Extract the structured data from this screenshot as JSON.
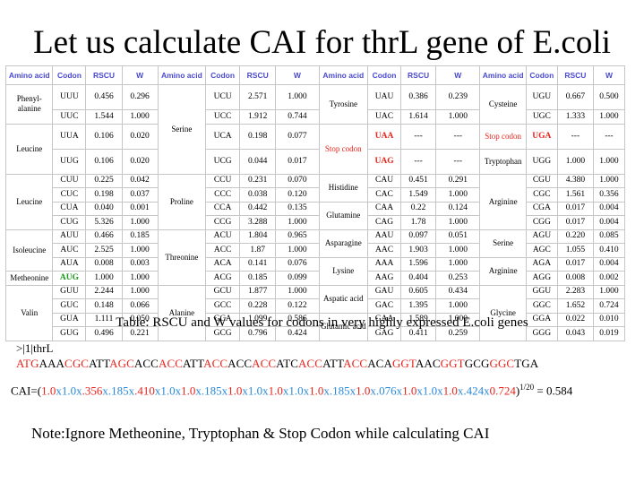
{
  "title": "Let us calculate CAI for thrL gene of E.coli",
  "headers": [
    "Amino acid",
    "Codon",
    "RSCU",
    "W"
  ],
  "caption": "Table: RSCU and W values for codons in very highly expressed E.coli genes",
  "seq_header": ">|1|thrL",
  "seq_parts": [
    "ATG",
    "AAA",
    "CGC",
    "ATT",
    "AGC",
    "ACC",
    "ACC",
    "ATT",
    "ACC",
    "ACC",
    "ACC",
    "ATC",
    "ACC",
    "ATT",
    "ACC",
    "ACA",
    "GGT",
    "AAC",
    "GGT",
    "GCG",
    "GGC",
    "TGA"
  ],
  "cai_prefix": "CAI=(",
  "cai_parts": [
    "1.0",
    "x",
    "1.0",
    "x",
    ".356",
    "x",
    ".185",
    "x",
    ".410",
    "x",
    "1.0",
    "x",
    "1.0",
    "x",
    ".185",
    "x",
    "1.0",
    "x",
    "1.0",
    "x",
    "1.0",
    "x",
    "1.0",
    "x",
    "1.0",
    "x",
    ".185",
    "x",
    "1.0",
    "x",
    ".076",
    "x",
    "1.0",
    "x",
    "1.0",
    "x",
    "1.0",
    "x",
    ".424",
    "x",
    "0.724"
  ],
  "cai_close": ")",
  "cai_exp": "1/20",
  "cai_result": "= 0.584",
  "note": "Note:Ignore Metheonine, Tryptophan & Stop Codon while calculating CAI",
  "colors": {
    "red": "#e8241c",
    "blue": "#2a8ad8",
    "green": "#1a9a1a",
    "header": "#4a4ad0"
  },
  "rows": [
    {
      "cls": "tall",
      "c": [
        {
          "t": "Phenyl-\nalanine",
          "rs": 2,
          "aa": 1
        },
        {
          "t": "UUU"
        },
        {
          "t": "0.456"
        },
        {
          "t": "0.296"
        },
        {
          "t": "Serine",
          "rs": 4,
          "aa": 1
        },
        {
          "t": "UCU"
        },
        {
          "t": "2.571"
        },
        {
          "t": "1.000"
        },
        {
          "t": "Tyrosine",
          "rs": 2,
          "aa": 1
        },
        {
          "t": "UAU"
        },
        {
          "t": "0.386"
        },
        {
          "t": "0.239"
        },
        {
          "t": "Cysteine",
          "rs": 2,
          "aa": 1
        },
        {
          "t": "UGU"
        },
        {
          "t": "0.667"
        },
        {
          "t": "0.500"
        }
      ]
    },
    {
      "c": [
        {
          "t": "UUC"
        },
        {
          "t": "1.544"
        },
        {
          "t": "1.000"
        },
        {
          "t": "UCC"
        },
        {
          "t": "1.912"
        },
        {
          "t": "0.744"
        },
        {
          "t": "UAC"
        },
        {
          "t": "1.614"
        },
        {
          "t": "1.000"
        },
        {
          "t": "UGC"
        },
        {
          "t": "1.333"
        },
        {
          "t": "1.000"
        }
      ]
    },
    {
      "cls": "tall",
      "c": [
        {
          "t": "Leucine",
          "rs": 2,
          "aa": 1
        },
        {
          "t": "UUA"
        },
        {
          "t": "0.106"
        },
        {
          "t": "0.020"
        },
        {
          "t": "UCA"
        },
        {
          "t": "0.198"
        },
        {
          "t": "0.077"
        },
        {
          "t": "Stop codon",
          "rs": 2,
          "aa": 1,
          "k": "red"
        },
        {
          "t": "UAA",
          "k": "red bold"
        },
        {
          "t": "---"
        },
        {
          "t": "---"
        },
        {
          "t": "Stop codon",
          "aa": 1,
          "k": "red"
        },
        {
          "t": "UGA",
          "k": "red bold"
        },
        {
          "t": "---"
        },
        {
          "t": "---"
        }
      ]
    },
    {
      "cls": "tall",
      "c": [
        {
          "t": "UUG"
        },
        {
          "t": "0.106"
        },
        {
          "t": "0.020"
        },
        {
          "t": "UCG"
        },
        {
          "t": "0.044"
        },
        {
          "t": "0.017"
        },
        {
          "t": "UAG",
          "k": "red bold"
        },
        {
          "t": "---"
        },
        {
          "t": "---"
        },
        {
          "t": "Tryptophan",
          "aa": 1
        },
        {
          "t": "UGG"
        },
        {
          "t": "1.000"
        },
        {
          "t": "1.000"
        }
      ]
    },
    {
      "c": [
        {
          "t": "Leucine",
          "rs": 4,
          "aa": 1
        },
        {
          "t": "CUU"
        },
        {
          "t": "0.225"
        },
        {
          "t": "0.042"
        },
        {
          "t": "Proline",
          "rs": 4,
          "aa": 1
        },
        {
          "t": "CCU"
        },
        {
          "t": "0.231"
        },
        {
          "t": "0.070"
        },
        {
          "t": "Histidine",
          "rs": 2,
          "aa": 1
        },
        {
          "t": "CAU"
        },
        {
          "t": "0.451"
        },
        {
          "t": "0.291"
        },
        {
          "t": "Arginine",
          "rs": 4,
          "aa": 1
        },
        {
          "t": "CGU"
        },
        {
          "t": "4.380"
        },
        {
          "t": "1.000"
        }
      ]
    },
    {
      "c": [
        {
          "t": "CUC"
        },
        {
          "t": "0.198"
        },
        {
          "t": "0.037"
        },
        {
          "t": "CCC"
        },
        {
          "t": "0.038"
        },
        {
          "t": "0.120"
        },
        {
          "t": "CAC"
        },
        {
          "t": "1.549"
        },
        {
          "t": "1.000"
        },
        {
          "t": "CGC"
        },
        {
          "t": "1.561"
        },
        {
          "t": "0.356"
        }
      ]
    },
    {
      "c": [
        {
          "t": "CUA"
        },
        {
          "t": "0.040"
        },
        {
          "t": "0.001"
        },
        {
          "t": "CCA"
        },
        {
          "t": "0.442"
        },
        {
          "t": "0.135"
        },
        {
          "t": "Glutamine",
          "rs": 2,
          "aa": 1
        },
        {
          "t": "CAA"
        },
        {
          "t": "0.22"
        },
        {
          "t": "0.124"
        },
        {
          "t": "CGA"
        },
        {
          "t": "0.017"
        },
        {
          "t": "0.004"
        }
      ]
    },
    {
      "c": [
        {
          "t": "CUG"
        },
        {
          "t": "5.326"
        },
        {
          "t": "1.000"
        },
        {
          "t": "CCG"
        },
        {
          "t": "3.288"
        },
        {
          "t": "1.000"
        },
        {
          "t": "CAG"
        },
        {
          "t": "1.78"
        },
        {
          "t": "1.000"
        },
        {
          "t": "CGG"
        },
        {
          "t": "0.017"
        },
        {
          "t": "0.004"
        }
      ]
    },
    {
      "c": [
        {
          "t": "Isoleucine",
          "rs": 3,
          "aa": 1
        },
        {
          "t": "AUU"
        },
        {
          "t": "0.466"
        },
        {
          "t": "0.185"
        },
        {
          "t": "Threonine",
          "rs": 4,
          "aa": 1
        },
        {
          "t": "ACU"
        },
        {
          "t": "1.804"
        },
        {
          "t": "0.965"
        },
        {
          "t": "Asparagine",
          "rs": 2,
          "aa": 1
        },
        {
          "t": "AAU"
        },
        {
          "t": "0.097"
        },
        {
          "t": "0.051"
        },
        {
          "t": "Serine",
          "rs": 2,
          "aa": 1
        },
        {
          "t": "AGU"
        },
        {
          "t": "0.220"
        },
        {
          "t": "0.085"
        }
      ]
    },
    {
      "c": [
        {
          "t": "AUC"
        },
        {
          "t": "2.525"
        },
        {
          "t": "1.000"
        },
        {
          "t": "ACC"
        },
        {
          "t": "1.87"
        },
        {
          "t": "1.000"
        },
        {
          "t": "AAC"
        },
        {
          "t": "1.903"
        },
        {
          "t": "1.000"
        },
        {
          "t": "AGC"
        },
        {
          "t": "1.055"
        },
        {
          "t": "0.410"
        }
      ]
    },
    {
      "c": [
        {
          "t": "AUA"
        },
        {
          "t": "0.008"
        },
        {
          "t": "0.003"
        },
        {
          "t": "ACA"
        },
        {
          "t": "0.141"
        },
        {
          "t": "0.076"
        },
        {
          "t": "Lysine",
          "rs": 2,
          "aa": 1
        },
        {
          "t": "AAA"
        },
        {
          "t": "1.596"
        },
        {
          "t": "1.000"
        },
        {
          "t": "Arginine",
          "rs": 2,
          "aa": 1
        },
        {
          "t": "AGA"
        },
        {
          "t": "0.017"
        },
        {
          "t": "0.004"
        }
      ]
    },
    {
      "c": [
        {
          "t": "Metheonine",
          "aa": 1
        },
        {
          "t": "AUG",
          "k": "green bold"
        },
        {
          "t": "1.000"
        },
        {
          "t": "1.000"
        },
        {
          "t": "ACG"
        },
        {
          "t": "0.185"
        },
        {
          "t": "0.099"
        },
        {
          "t": "AAG"
        },
        {
          "t": "0.404"
        },
        {
          "t": "0.253"
        },
        {
          "t": "AGG"
        },
        {
          "t": "0.008"
        },
        {
          "t": "0.002"
        }
      ]
    },
    {
      "c": [
        {
          "t": "Valin",
          "rs": 4,
          "aa": 1
        },
        {
          "t": "GUU"
        },
        {
          "t": "2.244"
        },
        {
          "t": "1.000"
        },
        {
          "t": "Alanine",
          "rs": 4,
          "aa": 1
        },
        {
          "t": "GCU"
        },
        {
          "t": "1.877"
        },
        {
          "t": "1.000"
        },
        {
          "t": "Aspatic acid",
          "rs": 2,
          "aa": 1
        },
        {
          "t": "GAU"
        },
        {
          "t": "0.605"
        },
        {
          "t": "0.434"
        },
        {
          "t": "Glycine",
          "rs": 4,
          "aa": 1
        },
        {
          "t": "GGU"
        },
        {
          "t": "2.283"
        },
        {
          "t": "1.000"
        }
      ]
    },
    {
      "c": [
        {
          "t": "GUC"
        },
        {
          "t": "0.148"
        },
        {
          "t": "0.066"
        },
        {
          "t": "GCC"
        },
        {
          "t": "0.228"
        },
        {
          "t": "0.122"
        },
        {
          "t": "GAC"
        },
        {
          "t": "1.395"
        },
        {
          "t": "1.000"
        },
        {
          "t": "GGC"
        },
        {
          "t": "1.652"
        },
        {
          "t": "0.724"
        }
      ]
    },
    {
      "c": [
        {
          "t": "GUA"
        },
        {
          "t": "1.111"
        },
        {
          "t": "0.050"
        },
        {
          "t": "GCA"
        },
        {
          "t": "1.099"
        },
        {
          "t": "0.586"
        },
        {
          "t": "Glutamic acid",
          "rs": 2,
          "aa": 1
        },
        {
          "t": "GAA"
        },
        {
          "t": "1.589"
        },
        {
          "t": "1.000"
        },
        {
          "t": "GGA"
        },
        {
          "t": "0.022"
        },
        {
          "t": "0.010"
        }
      ]
    },
    {
      "c": [
        {
          "t": "GUG"
        },
        {
          "t": "0.496"
        },
        {
          "t": "0.221"
        },
        {
          "t": "GCG"
        },
        {
          "t": "0.796"
        },
        {
          "t": "0.424"
        },
        {
          "t": "GAG"
        },
        {
          "t": "0.411"
        },
        {
          "t": "0.259"
        },
        {
          "t": "GGG"
        },
        {
          "t": "0.043"
        },
        {
          "t": "0.019"
        }
      ]
    }
  ]
}
